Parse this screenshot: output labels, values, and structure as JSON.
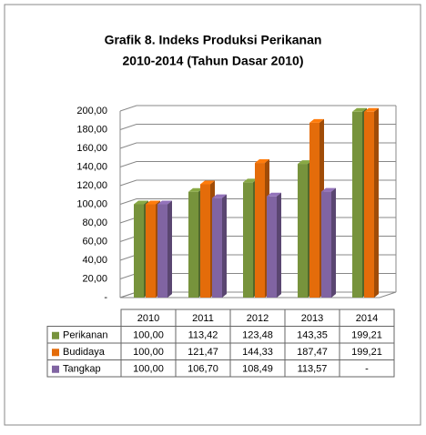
{
  "chart_data": {
    "type": "bar3d",
    "title": [
      "Grafik 8. Indeks Produksi Perikanan",
      "2010-2014 (Tahun Dasar 2010)"
    ],
    "categories": [
      "2010",
      "2011",
      "2012",
      "2013",
      "2014"
    ],
    "series": [
      {
        "name": "Perikanan",
        "color": "#77933c",
        "values": [
          100,
          113.42,
          123.48,
          143.35,
          199.21
        ],
        "value_labels": [
          "100,00",
          "113,42",
          "123,48",
          "143,35",
          "199,21"
        ]
      },
      {
        "name": "Budidaya",
        "color": "#e46c0a",
        "values": [
          100,
          121.47,
          144.33,
          187.47,
          199.21
        ],
        "value_labels": [
          "100,00",
          "121,47",
          "144,33",
          "187,47",
          "199,21"
        ]
      },
      {
        "name": "Tangkap",
        "color": "#8064a2",
        "values": [
          100,
          106.7,
          108.49,
          113.57,
          null
        ],
        "value_labels": [
          "100,00",
          "106,70",
          "108,49",
          "113,57",
          "-"
        ]
      }
    ],
    "ylim": [
      0,
      200
    ],
    "yticks": [
      {
        "value": 0,
        "label": "-"
      },
      {
        "value": 20,
        "label": "20,00"
      },
      {
        "value": 40,
        "label": "40,00"
      },
      {
        "value": 60,
        "label": "60,00"
      },
      {
        "value": 80,
        "label": "80,00"
      },
      {
        "value": 100,
        "label": "100,00"
      },
      {
        "value": 120,
        "label": "120,00"
      },
      {
        "value": 140,
        "label": "140,00"
      },
      {
        "value": 160,
        "label": "160,00"
      },
      {
        "value": 180,
        "label": "180,00"
      },
      {
        "value": 200,
        "label": "200,00"
      }
    ],
    "grid": true
  }
}
